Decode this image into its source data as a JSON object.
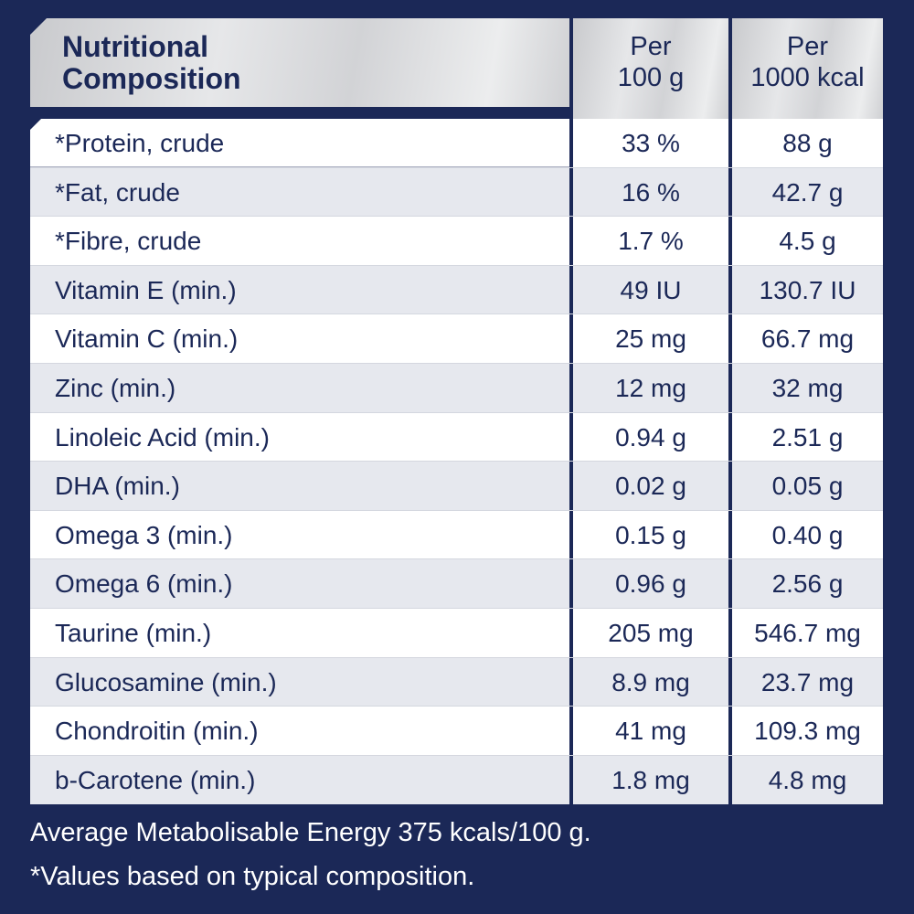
{
  "header": {
    "title_line1": "Nutritional",
    "title_line2": "Composition",
    "col1_line1": "Per",
    "col1_line2": "100 g",
    "col2_line1": "Per",
    "col2_line2": "1000 kcal"
  },
  "rows": [
    {
      "name": "*Protein, crude",
      "per100g": "33 %",
      "per1000kcal": "88 g"
    },
    {
      "name": "*Fat, crude",
      "per100g": "16 %",
      "per1000kcal": "42.7 g"
    },
    {
      "name": "*Fibre, crude",
      "per100g": "1.7 %",
      "per1000kcal": "4.5 g"
    },
    {
      "name": "Vitamin E (min.)",
      "per100g": "49 IU",
      "per1000kcal": "130.7 IU"
    },
    {
      "name": "Vitamin C (min.)",
      "per100g": "25 mg",
      "per1000kcal": "66.7 mg"
    },
    {
      "name": "Zinc (min.)",
      "per100g": "12 mg",
      "per1000kcal": "32 mg"
    },
    {
      "name": "Linoleic Acid (min.)",
      "per100g": "0.94 g",
      "per1000kcal": "2.51 g"
    },
    {
      "name": "DHA (min.)",
      "per100g": "0.02 g",
      "per1000kcal": "0.05 g"
    },
    {
      "name": "Omega 3 (min.)",
      "per100g": "0.15 g",
      "per1000kcal": "0.40 g"
    },
    {
      "name": "Omega 6 (min.)",
      "per100g": "0.96 g",
      "per1000kcal": "2.56 g"
    },
    {
      "name": "Taurine (min.)",
      "per100g": "205 mg",
      "per1000kcal": "546.7 mg"
    },
    {
      "name": "Glucosamine (min.)",
      "per100g": "8.9 mg",
      "per1000kcal": "23.7 mg"
    },
    {
      "name": "Chondroitin (min.)",
      "per100g": "41 mg",
      "per1000kcal": "109.3 mg"
    },
    {
      "name": "b-Carotene (min.)",
      "per100g": "1.8 mg",
      "per1000kcal": "4.8 mg"
    }
  ],
  "footer": {
    "energy": "Average Metabolisable Energy 375 kcals/100 g.",
    "note": "*Values based on typical composition."
  }
}
